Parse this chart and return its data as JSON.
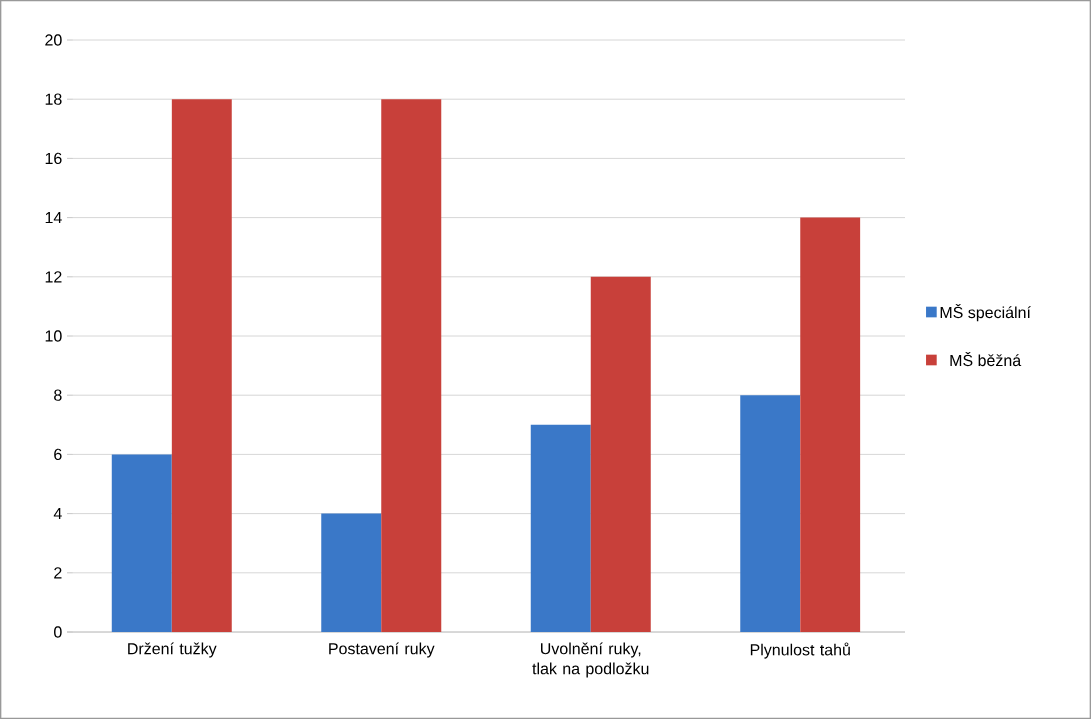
{
  "chart_data": {
    "type": "bar",
    "categories": [
      "Držení tužky",
      "Postavení ruky",
      "Uvolnění ruky, tlak na podložku",
      "Plynulost tahů"
    ],
    "series": [
      {
        "name": "MŠ speciální",
        "color": "#3a78c8",
        "values": [
          6,
          4,
          7,
          8
        ]
      },
      {
        "name": "MŠ  běžná",
        "color": "#c8403a",
        "values": [
          18,
          18,
          12,
          14
        ]
      }
    ],
    "ylim": [
      0,
      20
    ],
    "yticks": [
      0,
      2,
      4,
      6,
      8,
      10,
      12,
      14,
      16,
      18,
      20
    ],
    "grid": "y",
    "legend": "right"
  }
}
